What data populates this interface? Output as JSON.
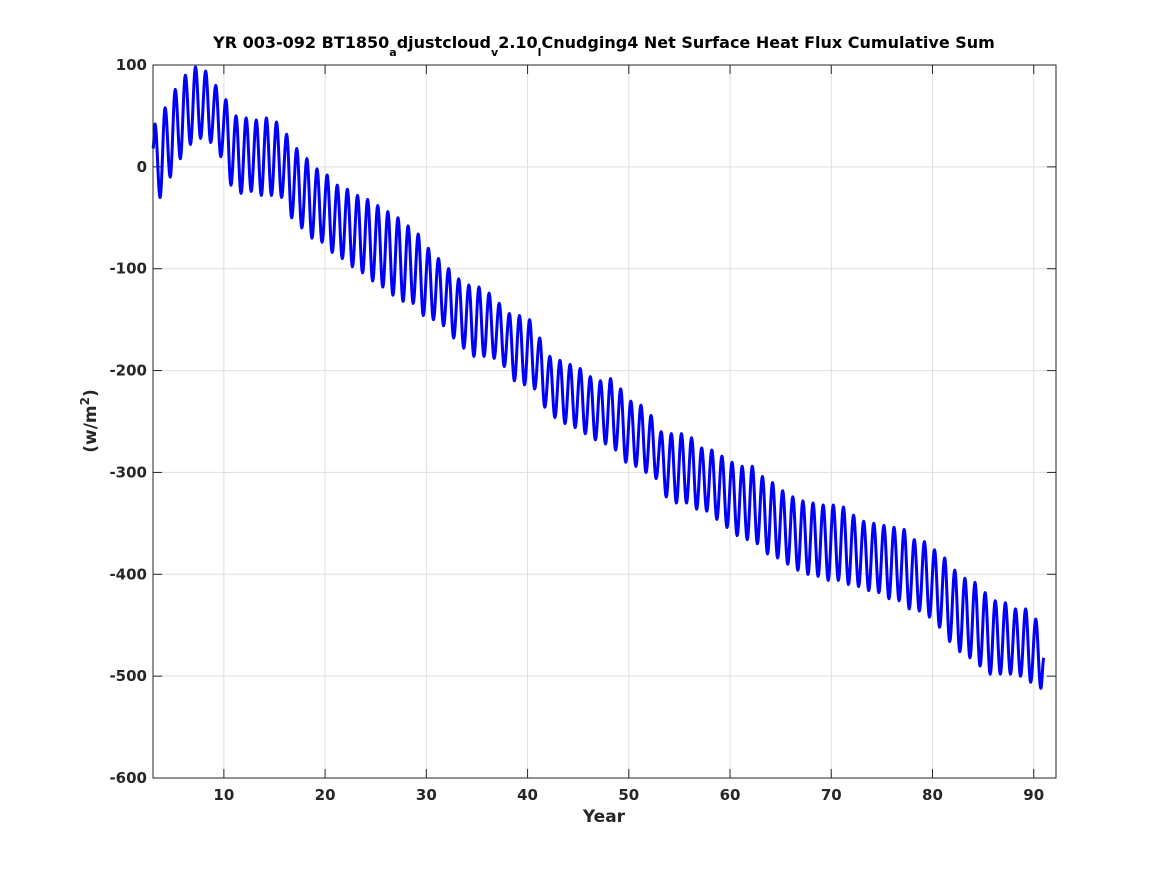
{
  "chart_data": {
    "type": "line",
    "title": {
      "part1": "YR 003-092 BT1850",
      "sub1": "a",
      "part2": "djustcloud",
      "sub2": "v",
      "part3": "2.10",
      "sub3": "l",
      "part4": "Cnudging4 Net Surface Heat Flux  Cumulative Sum"
    },
    "xlabel": "Year",
    "ylabel": {
      "base": "(w/m",
      "sup": "2",
      "close": ")"
    },
    "xlim": [
      3,
      92.2
    ],
    "ylim": [
      -600,
      100
    ],
    "xticks": [
      10,
      20,
      30,
      40,
      50,
      60,
      70,
      80,
      90
    ],
    "yticks": [
      100,
      0,
      -100,
      -200,
      -300,
      -400,
      -500,
      -600
    ],
    "grid": true,
    "line_color": "#0000ff",
    "series": [
      {
        "oscillation_period_years": 1,
        "start_year": 3,
        "end_year": 91,
        "annual_peaks_x": [
          3.2,
          4.2,
          5.2,
          6.2,
          7.2,
          8.2,
          9.2,
          10.2,
          11.2,
          12.2,
          13.2,
          14.2,
          15.2,
          16.2,
          17.2,
          18.2,
          19.2,
          20.2,
          21.2,
          22.2,
          23.2,
          24.2,
          25.2,
          26.2,
          27.2,
          28.2,
          29.2,
          30.2,
          31.2,
          32.2,
          33.2,
          34.2,
          35.2,
          36.2,
          37.2,
          38.2,
          39.2,
          40.2,
          41.2,
          42.2,
          43.2,
          44.2,
          45.2,
          46.2,
          47.2,
          48.2,
          49.2,
          50.2,
          51.2,
          52.2,
          53.2,
          54.2,
          55.2,
          56.2,
          57.2,
          58.2,
          59.2,
          60.2,
          61.2,
          62.2,
          63.2,
          64.2,
          65.2,
          66.2,
          67.2,
          68.2,
          69.2,
          70.2,
          71.2,
          72.2,
          73.2,
          74.2,
          75.2,
          76.2,
          77.2,
          78.2,
          79.2,
          80.2,
          81.2,
          82.2,
          83.2,
          84.2,
          85.2,
          86.2,
          87.2,
          88.2,
          89.2,
          90.2
        ],
        "annual_peaks_y": [
          42,
          58,
          76,
          90,
          98,
          94,
          80,
          66,
          50,
          48,
          46,
          48,
          44,
          32,
          18,
          8,
          -2,
          -8,
          -18,
          -22,
          -28,
          -32,
          -38,
          -44,
          -50,
          -58,
          -66,
          -80,
          -90,
          -100,
          -110,
          -116,
          -118,
          -124,
          -134,
          -144,
          -146,
          -150,
          -168,
          -186,
          -190,
          -194,
          -198,
          -206,
          -210,
          -208,
          -218,
          -230,
          -234,
          -244,
          -260,
          -262,
          -262,
          -266,
          -276,
          -278,
          -284,
          -290,
          -294,
          -294,
          -304,
          -310,
          -318,
          -324,
          -328,
          -330,
          -332,
          -332,
          -334,
          -342,
          -348,
          -350,
          -352,
          -354,
          -356,
          -366,
          -368,
          -376,
          -384,
          -396,
          -404,
          -408,
          -418,
          -426,
          -428,
          -434,
          -434,
          -444
        ],
        "annual_troughs_x": [
          3.7,
          4.7,
          5.7,
          6.7,
          7.7,
          8.7,
          9.7,
          10.7,
          11.7,
          12.7,
          13.7,
          14.7,
          15.7,
          16.7,
          17.7,
          18.7,
          19.7,
          20.7,
          21.7,
          22.7,
          23.7,
          24.7,
          25.7,
          26.7,
          27.7,
          28.7,
          29.7,
          30.7,
          31.7,
          32.7,
          33.7,
          34.7,
          35.7,
          36.7,
          37.7,
          38.7,
          39.7,
          40.7,
          41.7,
          42.7,
          43.7,
          44.7,
          45.7,
          46.7,
          47.7,
          48.7,
          49.7,
          50.7,
          51.7,
          52.7,
          53.7,
          54.7,
          55.7,
          56.7,
          57.7,
          58.7,
          59.7,
          60.7,
          61.7,
          62.7,
          63.7,
          64.7,
          65.7,
          66.7,
          67.7,
          68.7,
          69.7,
          70.7,
          71.7,
          72.7,
          73.7,
          74.7,
          75.7,
          76.7,
          77.7,
          78.7,
          79.7,
          80.7,
          81.7,
          82.7,
          83.7,
          84.7,
          85.7,
          86.7,
          87.7,
          88.7,
          89.7,
          90.7
        ],
        "annual_troughs_y": [
          -30,
          -10,
          8,
          22,
          28,
          24,
          10,
          -18,
          -26,
          -24,
          -28,
          -28,
          -30,
          -50,
          -60,
          -70,
          -74,
          -84,
          -90,
          -98,
          -104,
          -112,
          -118,
          -126,
          -132,
          -134,
          -146,
          -150,
          -156,
          -168,
          -178,
          -186,
          -186,
          -188,
          -196,
          -210,
          -214,
          -218,
          -236,
          -246,
          -252,
          -256,
          -262,
          -268,
          -272,
          -278,
          -290,
          -294,
          -300,
          -306,
          -324,
          -330,
          -330,
          -336,
          -338,
          -346,
          -354,
          -362,
          -366,
          -370,
          -380,
          -384,
          -390,
          -396,
          -400,
          -402,
          -406,
          -406,
          -410,
          -412,
          -416,
          -418,
          -424,
          -426,
          -434,
          -436,
          -442,
          -452,
          -466,
          -476,
          -482,
          -490,
          -498,
          -498,
          -498,
          -500,
          -506,
          -512
        ],
        "start_value": 18,
        "end_value": -482
      }
    ]
  }
}
